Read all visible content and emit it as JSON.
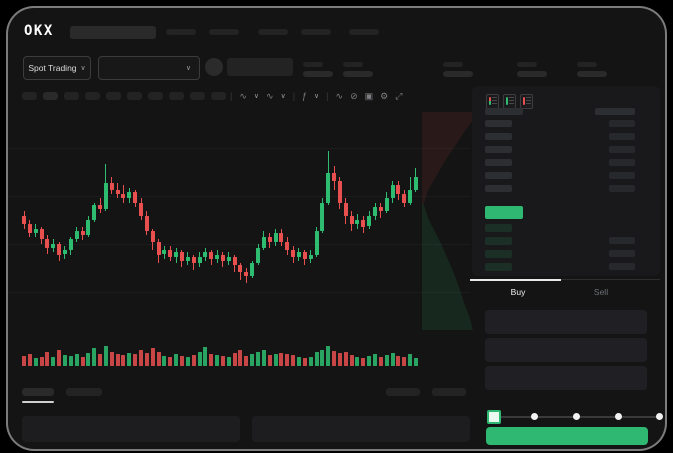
{
  "brand": {
    "logo": "OKX"
  },
  "colors": {
    "candle_up": "#2ebd70",
    "candle_down": "#e8504f",
    "accent_green": "#2eb872",
    "window_bg": "#141414"
  },
  "icons": {
    "chevron": "∨",
    "separator": "|",
    "wave": "∿",
    "indicator": "ƒ",
    "compare": "⊘",
    "camera": "▣",
    "settings": "⚙",
    "fullscreen": "⤢"
  },
  "subheader": {
    "market_label": "Spot Trading"
  },
  "trade_panel": {
    "buy_label": "Buy",
    "sell_label": "Sell"
  },
  "chart": {
    "type": "candlestick",
    "note": "values on 0-100 relative price scale; candle = [open, close, low, high]; volume in px height",
    "step": 5.85,
    "candles": [
      [
        52,
        48,
        46,
        54
      ],
      [
        48,
        44,
        42,
        50
      ],
      [
        44,
        46,
        42,
        48
      ],
      [
        46,
        41,
        39,
        47
      ],
      [
        41,
        37,
        34,
        43
      ],
      [
        37,
        39,
        35,
        41
      ],
      [
        39,
        34,
        31,
        40
      ],
      [
        34,
        36,
        32,
        38
      ],
      [
        36,
        41,
        34,
        42
      ],
      [
        41,
        45,
        40,
        47
      ],
      [
        45,
        43,
        41,
        47
      ],
      [
        43,
        50,
        42,
        52
      ],
      [
        50,
        57,
        49,
        58
      ],
      [
        57,
        55,
        53,
        60
      ],
      [
        55,
        67,
        54,
        76
      ],
      [
        67,
        64,
        62,
        70
      ],
      [
        64,
        62,
        60,
        67
      ],
      [
        62,
        60,
        58,
        66
      ],
      [
        60,
        63,
        58,
        65
      ],
      [
        63,
        58,
        56,
        64
      ],
      [
        58,
        52,
        50,
        60
      ],
      [
        52,
        45,
        43,
        54
      ],
      [
        45,
        40,
        36,
        46
      ],
      [
        40,
        34,
        30,
        41
      ],
      [
        34,
        36,
        32,
        38
      ],
      [
        36,
        33,
        31,
        38
      ],
      [
        33,
        35,
        30,
        37
      ],
      [
        35,
        31,
        28,
        36
      ],
      [
        31,
        33,
        29,
        35
      ],
      [
        33,
        30,
        27,
        34
      ],
      [
        30,
        33,
        28,
        35
      ],
      [
        33,
        35,
        31,
        37
      ],
      [
        35,
        32,
        29,
        36
      ],
      [
        32,
        34,
        30,
        36
      ],
      [
        34,
        31,
        28,
        35
      ],
      [
        31,
        33,
        29,
        35
      ],
      [
        33,
        29,
        26,
        34
      ],
      [
        29,
        26,
        22,
        30
      ],
      [
        26,
        24,
        21,
        28
      ],
      [
        24,
        30,
        23,
        31
      ],
      [
        30,
        37,
        29,
        39
      ],
      [
        37,
        42,
        36,
        45
      ],
      [
        42,
        40,
        37,
        44
      ],
      [
        40,
        44,
        38,
        46
      ],
      [
        44,
        40,
        38,
        46
      ],
      [
        40,
        36,
        34,
        42
      ],
      [
        36,
        33,
        30,
        38
      ],
      [
        33,
        35,
        31,
        37
      ],
      [
        35,
        32,
        29,
        36
      ],
      [
        32,
        34,
        30,
        36
      ],
      [
        34,
        45,
        33,
        47
      ],
      [
        45,
        58,
        44,
        60
      ],
      [
        58,
        72,
        57,
        82
      ],
      [
        72,
        68,
        64,
        75
      ],
      [
        68,
        58,
        55,
        70
      ],
      [
        58,
        52,
        48,
        60
      ],
      [
        52,
        48,
        45,
        54
      ],
      [
        48,
        50,
        46,
        53
      ],
      [
        50,
        47,
        44,
        52
      ],
      [
        47,
        52,
        46,
        54
      ],
      [
        52,
        56,
        50,
        58
      ],
      [
        56,
        54,
        51,
        58
      ],
      [
        54,
        60,
        53,
        63
      ],
      [
        60,
        66,
        58,
        68
      ],
      [
        66,
        62,
        59,
        68
      ],
      [
        62,
        58,
        56,
        64
      ],
      [
        58,
        64,
        57,
        70
      ],
      [
        64,
        70,
        63,
        74
      ]
    ],
    "volume": [
      10,
      12,
      8,
      9,
      14,
      9,
      16,
      11,
      10,
      12,
      9,
      13,
      18,
      12,
      20,
      14,
      12,
      11,
      13,
      12,
      16,
      13,
      18,
      14,
      10,
      9,
      12,
      10,
      9,
      11,
      14,
      19,
      12,
      11,
      10,
      9,
      13,
      16,
      10,
      12,
      14,
      16,
      11,
      12,
      13,
      12,
      11,
      9,
      8,
      9,
      14,
      16,
      20,
      15,
      13,
      14,
      11,
      9,
      8,
      10,
      12,
      9,
      11,
      13,
      10,
      9,
      12,
      8
    ],
    "depth_overlay": {
      "asks_side": "top-red",
      "bids_side": "bottom-green"
    }
  }
}
